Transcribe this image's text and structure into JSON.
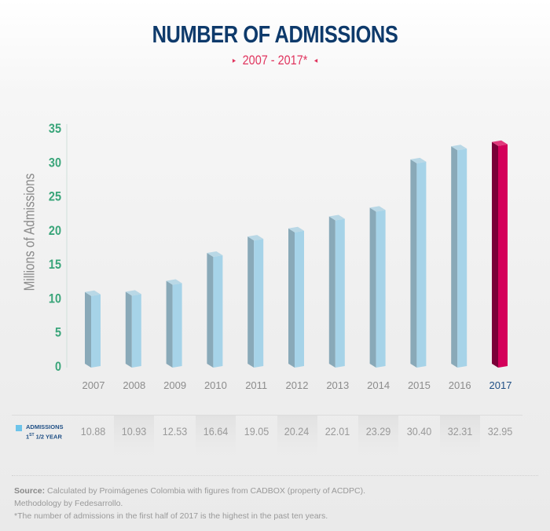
{
  "header": {
    "title": "NUMBER OF ADMISSIONS",
    "subtitle": "2007 - 2017*",
    "subtitle_left_marker": "▸",
    "subtitle_right_marker": "◂"
  },
  "chart_data": {
    "type": "bar",
    "title": "NUMBER OF ADMISSIONS",
    "subtitle": "2007 - 2017*",
    "xlabel": "",
    "ylabel": "Millions of Admissions",
    "ylim": [
      0,
      35
    ],
    "yticks": [
      0,
      5,
      10,
      15,
      20,
      25,
      30,
      35
    ],
    "grid": false,
    "categories": [
      "2007",
      "2008",
      "2009",
      "2010",
      "2011",
      "2012",
      "2013",
      "2014",
      "2015",
      "2016",
      "2017"
    ],
    "series": [
      {
        "name": "ADMISSIONS 1ST 1/2 YEAR",
        "values": [
          10.88,
          10.93,
          12.53,
          16.64,
          19.05,
          20.24,
          22.01,
          23.29,
          30.4,
          32.31,
          32.95
        ],
        "value_labels": [
          "10.88",
          "10.93",
          "12.53",
          "16.64",
          "19.05",
          "20.24",
          "22.01",
          "23.29",
          "30.40",
          "32.31",
          "32.95"
        ]
      }
    ],
    "highlight_category": "2017",
    "colors": {
      "bar_front": "#a6d3e8",
      "bar_side": "#89a9b8",
      "bar_top": "#b9d8e6",
      "highlight_front": "#d4005a",
      "highlight_side": "#7a0038",
      "highlight_top": "#e03a7c",
      "ytick": "#3aa57a",
      "xtick": "#8c8c8c",
      "xtick_highlight": "#1f4f85"
    },
    "legend": {
      "position": "bottom-left",
      "label_line1": "ADMISSIONS",
      "label_line2_main": "1",
      "label_line2_sup": "ST",
      "label_line2_rest": " 1/2 YEAR",
      "color": "#6dc4ea"
    }
  },
  "footer": {
    "source_label": "Source:",
    "source_text": " Calculated by Proimágenes Colombia with figures from CADBOX (property of ACDPC).",
    "methodology": "Methodology by Fedesarrollo.",
    "note": "*The number of admissions in the first half of 2017 is the highest in the past ten years."
  }
}
